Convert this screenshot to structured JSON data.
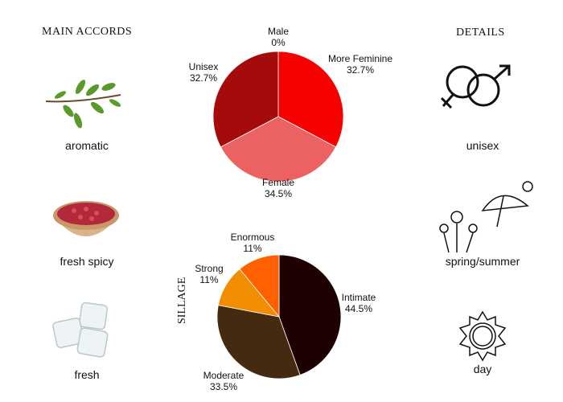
{
  "left": {
    "title": "MAIN ACCORDS",
    "accords": [
      {
        "label": "aromatic",
        "icon": "herb-sprig-icon"
      },
      {
        "label": "fresh spicy",
        "icon": "peppercorn-bowl-icon"
      },
      {
        "label": "fresh",
        "icon": "ice-cubes-icon"
      }
    ]
  },
  "right": {
    "title": "DETAILS",
    "items": [
      {
        "label": "unisex",
        "icon": "gender-symbols-icon"
      },
      {
        "label": "spring/summer",
        "icon": "flowers-umbrella-sun-icon"
      },
      {
        "label": "day",
        "icon": "sun-icon"
      }
    ]
  },
  "chart_data": [
    {
      "type": "pie",
      "title": "",
      "start": "top, clockwise",
      "slices": [
        {
          "name": "More Feminine",
          "value": 32.7,
          "label": "32.7%",
          "color": "#f60000"
        },
        {
          "name": "Female",
          "value": 34.5,
          "label": "34.5%",
          "color": "#ec6161"
        },
        {
          "name": "Unisex",
          "value": 32.7,
          "label": "32.7%",
          "color": "#a50b0b"
        },
        {
          "name": "Male",
          "value": 0,
          "label": "0%",
          "color": "#7a0000"
        }
      ]
    },
    {
      "type": "pie",
      "title": "SILLAGE",
      "start": "top, clockwise",
      "slices": [
        {
          "name": "Intimate",
          "value": 44.5,
          "label": "44.5%",
          "color": "#1e0000"
        },
        {
          "name": "Moderate",
          "value": 33.5,
          "label": "33.5%",
          "color": "#432a10"
        },
        {
          "name": "Strong",
          "value": 11,
          "label": "11%",
          "color": "#f28c00"
        },
        {
          "name": "Enormous",
          "value": 11,
          "label": "11%",
          "color": "#ff6000"
        }
      ]
    }
  ]
}
